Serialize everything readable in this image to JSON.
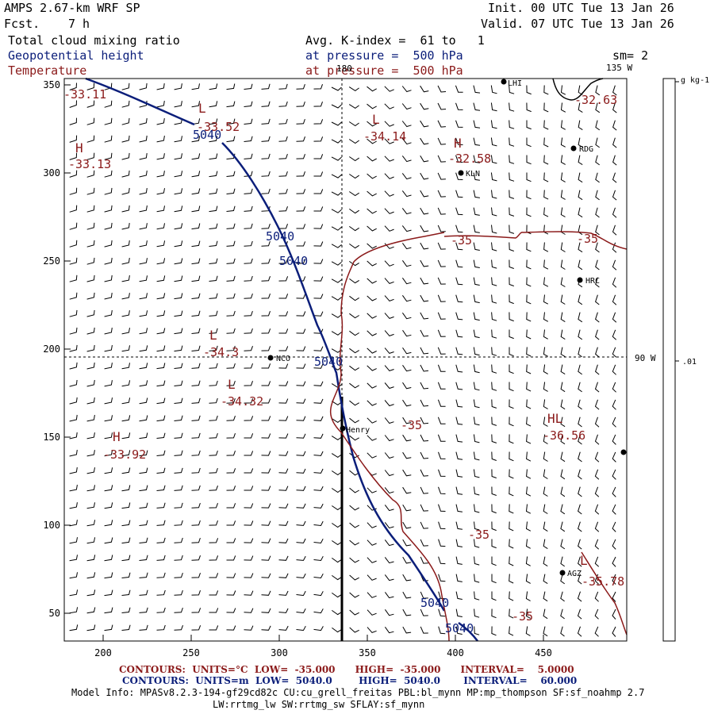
{
  "header": {
    "model": "AMPS 2.67-km WRF SP",
    "fcst_label": "Fcst.",
    "fcst_value": "7 h",
    "init": "Init. 00 UTC Tue 13 Jan 26",
    "valid": "Valid. 07 UTC Tue 13 Jan 26",
    "field_1": "Total cloud mixing ratio",
    "field_2": "Geopotential height",
    "field_3": "Temperature",
    "avg": "Avg. K-index =  61 to   1",
    "pressure_1": "at pressure =  500 hPa",
    "pressure_2": "at pressure =  500 hPa",
    "sm": "sm= 2"
  },
  "colors": {
    "height": "#0b1e7a",
    "temperature": "#8b1a1a",
    "barb": "#000000"
  },
  "map": {
    "x_ticks": [
      "200",
      "250",
      "300",
      "350",
      "400",
      "450"
    ],
    "y_ticks": [
      "350",
      "300",
      "250",
      "200",
      "150",
      "100",
      "50"
    ],
    "meridian_180": "180",
    "meridian_135": "135 W",
    "meridian_90": "90 W",
    "stations": [
      "NCO",
      "Henry",
      "KLN",
      "RDG",
      "HRC",
      "AGZ",
      "LHI"
    ],
    "temperature_labels": [
      "-33.11",
      "-33.52",
      "-33.13",
      "-34.14",
      "-32.58",
      "-32.63",
      "-34.3",
      "-34.32",
      "-33.92",
      "-36.56",
      "-35.78",
      "-35",
      "-35",
      "-35",
      "-35",
      "-35"
    ],
    "pressure_centers": [
      "L",
      "H",
      "L",
      "H",
      "L",
      "L",
      "H",
      "HL",
      "L"
    ],
    "height_labels": [
      "5040",
      "5040",
      "5040",
      "5040",
      "5040",
      "5040"
    ]
  },
  "colorbar": {
    "unit": "g kg-1",
    "value": ".01"
  },
  "footer": {
    "temp_contours": "CONTOURS:  UNITS=°C  LOW=  -35.000      HIGH=  -35.000      INTERVAL=    5.0000",
    "height_contours": "CONTOURS:  UNITS=m  LOW=  5040.0        HIGH=  5040.0       INTERVAL=    60.000",
    "model_info_1": "Model Info: MPASv8.2.3-194-gf29cd82c CU:cu_grell_freitas PBL:bl_mynn MP:mp_thompson SF:sf_noahmp 2.7",
    "model_info_2": "LW:rrtmg_lw SW:rrtmg_sw SFLAY:sf_mynn"
  }
}
